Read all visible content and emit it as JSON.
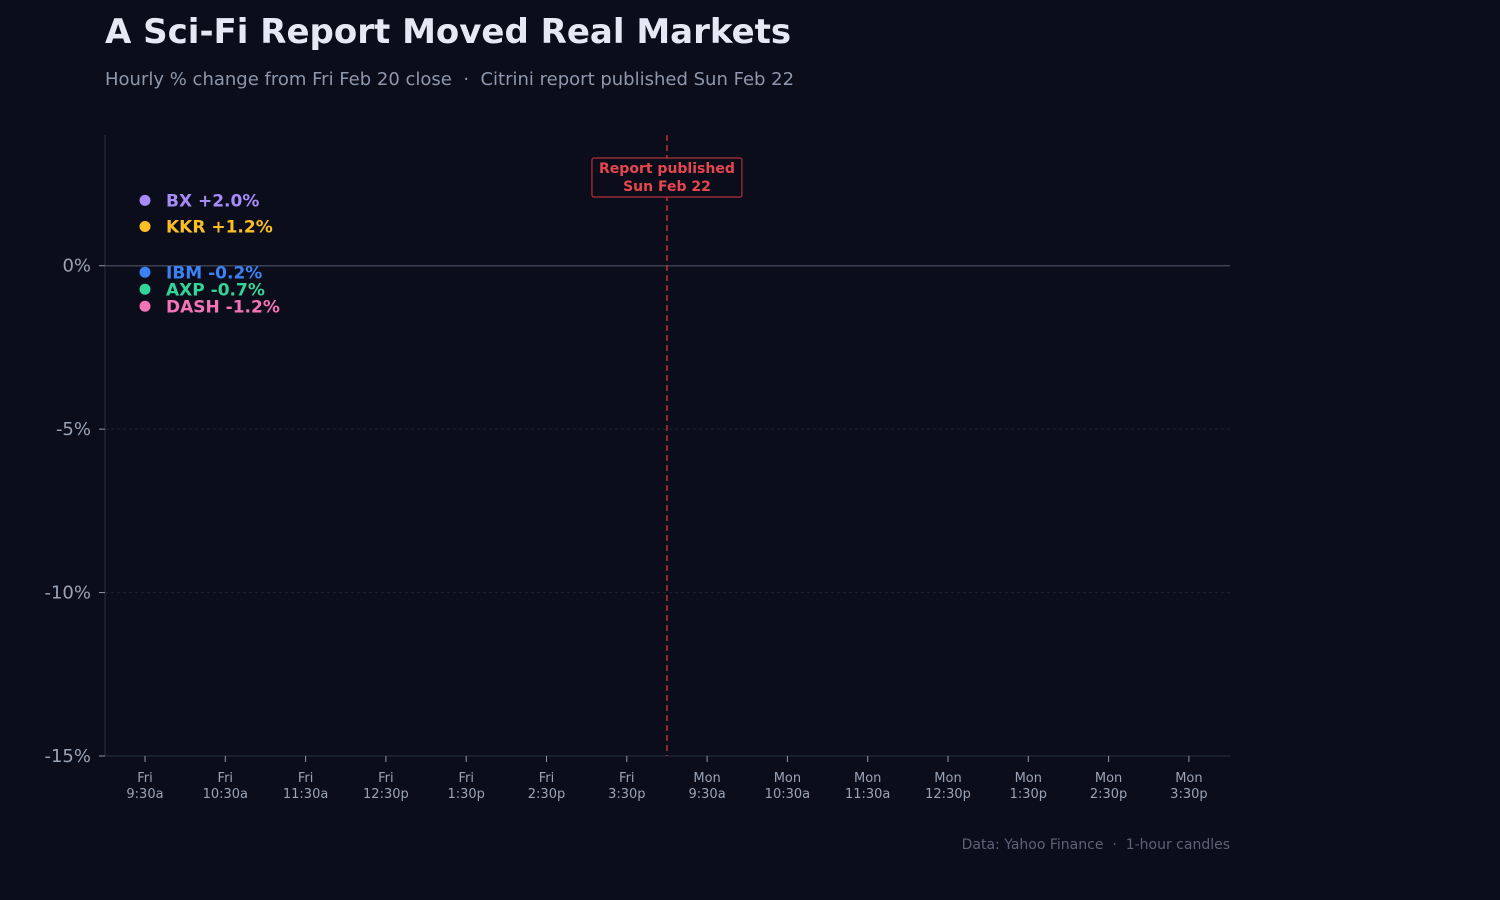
{
  "chart_data": {
    "type": "line",
    "title": "A Sci-Fi Report Moved Real Markets",
    "subtitle": "Hourly % change from Fri Feb 20 close  ·  Citrini report published Sun Feb 22",
    "xlabel": "",
    "ylabel": "",
    "ylim": [
      -15,
      4
    ],
    "yticks": [
      0,
      -5,
      -10,
      -15
    ],
    "ytick_labels": [
      "0%",
      "-5%",
      "-10%",
      "-15%"
    ],
    "x_categories": [
      [
        "Fri",
        "9:30a"
      ],
      [
        "Fri",
        "10:30a"
      ],
      [
        "Fri",
        "11:30a"
      ],
      [
        "Fri",
        "12:30p"
      ],
      [
        "Fri",
        "1:30p"
      ],
      [
        "Fri",
        "2:30p"
      ],
      [
        "Fri",
        "3:30p"
      ],
      [
        "Mon",
        "9:30a"
      ],
      [
        "Mon",
        "10:30a"
      ],
      [
        "Mon",
        "11:30a"
      ],
      [
        "Mon",
        "12:30p"
      ],
      [
        "Mon",
        "1:30p"
      ],
      [
        "Mon",
        "2:30p"
      ],
      [
        "Mon",
        "3:30p"
      ]
    ],
    "legend_placement": "top-left",
    "grid": "horizontal dotted",
    "series": [
      {
        "name": "BX",
        "change_label": "+2.0%",
        "last_value": 2.0,
        "color": "#a78bfa"
      },
      {
        "name": "KKR",
        "change_label": "+1.2%",
        "last_value": 1.2,
        "color": "#fbbf24"
      },
      {
        "name": "IBM",
        "change_label": "-0.2%",
        "last_value": -0.2,
        "color": "#3b82f6"
      },
      {
        "name": "AXP",
        "change_label": "-0.7%",
        "last_value": -0.7,
        "color": "#34d399"
      },
      {
        "name": "DASH",
        "change_label": "-1.2%",
        "last_value": -1.2,
        "color": "#f472b6"
      }
    ],
    "annotation": {
      "line1": "Report published",
      "line2": "Sun Feb 22",
      "x_between": [
        "Fri 3:30p",
        "Mon 9:30a"
      ],
      "color": "#e8464f"
    },
    "source": "Data: Yahoo Finance  ·  1-hour candles"
  }
}
